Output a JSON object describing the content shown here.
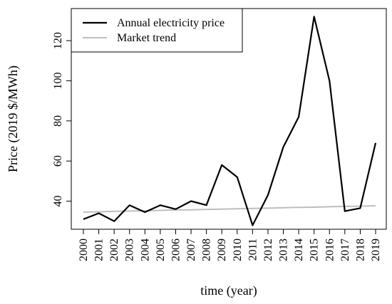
{
  "chart_data": {
    "type": "line",
    "xlabel": "time (year)",
    "ylabel": "Price (2019 $/MWh)",
    "x": [
      2000,
      2001,
      2002,
      2003,
      2004,
      2005,
      2006,
      2007,
      2008,
      2009,
      2010,
      2011,
      2012,
      2013,
      2014,
      2015,
      2016,
      2017,
      2018,
      2019
    ],
    "xlim": [
      2000,
      2019
    ],
    "ylim": [
      26,
      136
    ],
    "yticks": [
      40,
      60,
      80,
      100,
      120
    ],
    "series": [
      {
        "name": "Annual electricity price",
        "color": "#000000",
        "values": [
          31,
          34,
          30,
          38,
          34.5,
          38,
          36,
          40,
          38,
          58,
          52,
          28,
          43,
          67,
          82,
          132,
          100,
          35,
          36.5,
          69
        ]
      },
      {
        "name": "Market trend",
        "color": "#bebebe",
        "values": [
          34.5,
          34.7,
          34.9,
          35.1,
          35.2,
          35.4,
          35.6,
          35.7,
          35.9,
          36.0,
          36.2,
          36.4,
          36.5,
          36.7,
          36.9,
          37.0,
          37.2,
          37.4,
          37.5,
          37.7
        ]
      }
    ],
    "legend_position": "top-left",
    "grid": false
  }
}
